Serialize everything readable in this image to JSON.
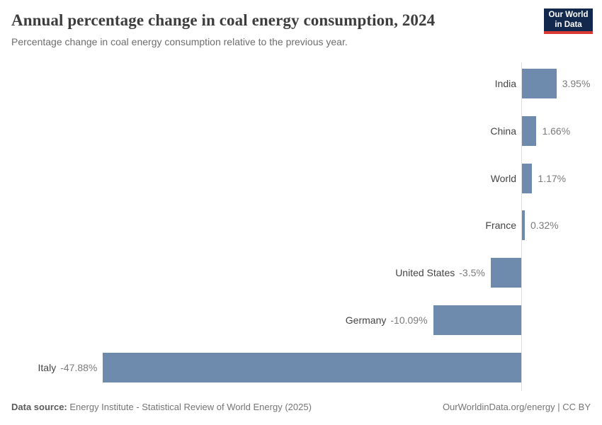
{
  "header": {
    "title": "Annual percentage change in coal energy consumption, 2024",
    "subtitle": "Percentage change in coal energy consumption relative to the previous year.",
    "logo": {
      "line1": "Our World",
      "line2": "in Data"
    }
  },
  "chart_data": {
    "type": "bar",
    "orientation": "horizontal",
    "title": "Annual percentage change in coal energy consumption, 2024",
    "xlabel": "",
    "ylabel": "",
    "categories": [
      "India",
      "China",
      "World",
      "France",
      "United States",
      "Germany",
      "Italy"
    ],
    "values": [
      3.95,
      1.66,
      1.17,
      0.32,
      -3.5,
      -10.09,
      -47.88
    ],
    "value_labels": [
      "3.95%",
      "1.66%",
      "1.17%",
      "0.32%",
      "-3.5%",
      "-10.09%",
      "-47.88%"
    ],
    "xlim": [
      -47.88,
      3.95
    ],
    "grid": false,
    "legend": "none",
    "bar_color": "#6e8aad"
  },
  "footer": {
    "source_label": "Data source:",
    "source_text": "Energy Institute - Statistical Review of World Energy (2025)",
    "credit": "OurWorldinData.org/energy | CC BY"
  },
  "colors": {
    "bar": "#6e8aad",
    "logo_navy": "#12294d",
    "logo_red": "#d93a34",
    "axis_line": "#dcdcdc",
    "title_text": "#3d3d3d",
    "label_text": "#444444",
    "value_text": "#7b7b7b"
  }
}
